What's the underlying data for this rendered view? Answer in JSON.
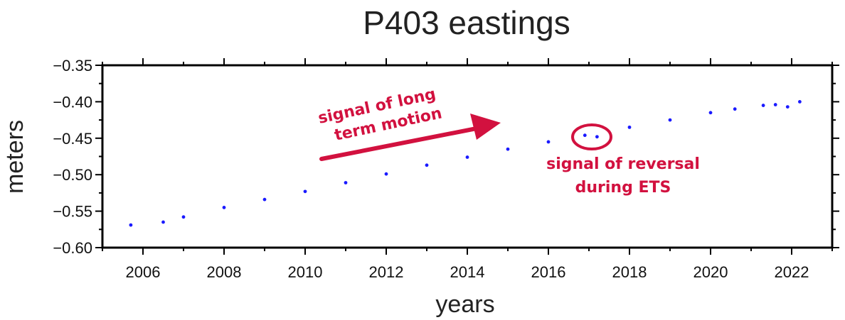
{
  "chart_data": {
    "type": "scatter",
    "title": "P403 eastings",
    "xlabel": "years",
    "ylabel": "meters",
    "xlim": [
      2005,
      2023
    ],
    "ylim": [
      -0.6,
      -0.35
    ],
    "xticks": [
      2006,
      2008,
      2010,
      2012,
      2014,
      2016,
      2018,
      2020,
      2022
    ],
    "xtick_labels": [
      "2006",
      "2008",
      "2010",
      "2012",
      "2014",
      "2016",
      "2018",
      "2020",
      "2022"
    ],
    "yticks": [
      -0.35,
      -0.4,
      -0.45,
      -0.5,
      -0.55,
      -0.6
    ],
    "ytick_labels": [
      "−0.35",
      "−0.40",
      "−0.45",
      "−0.50",
      "−0.55",
      "−0.60"
    ],
    "grid": false,
    "point_color": "#1a1aff",
    "series": [
      {
        "x": [
          2005.7,
          2006.5,
          2007.0,
          2008.0,
          2009.0,
          2010.0,
          2011.0,
          2012.0,
          2013.0,
          2014.0,
          2015.0,
          2016.0,
          2016.9,
          2017.2,
          2018.0,
          2019.0,
          2020.0,
          2020.6,
          2021.3,
          2021.6,
          2021.9,
          2022.2
        ],
        "y": [
          -0.569,
          -0.565,
          -0.558,
          -0.545,
          -0.534,
          -0.523,
          -0.511,
          -0.499,
          -0.487,
          -0.476,
          -0.465,
          -0.455,
          -0.446,
          -0.448,
          -0.435,
          -0.425,
          -0.415,
          -0.41,
          -0.405,
          -0.404,
          -0.407,
          -0.4
        ]
      }
    ],
    "annotations": [
      {
        "text": "signal of long",
        "accent": "#d2113f"
      },
      {
        "text": "term motion",
        "accent": "#d2113f"
      },
      {
        "text": "signal of reversal",
        "accent": "#d2113f"
      },
      {
        "text": "during ETS",
        "accent": "#d2113f"
      }
    ]
  }
}
